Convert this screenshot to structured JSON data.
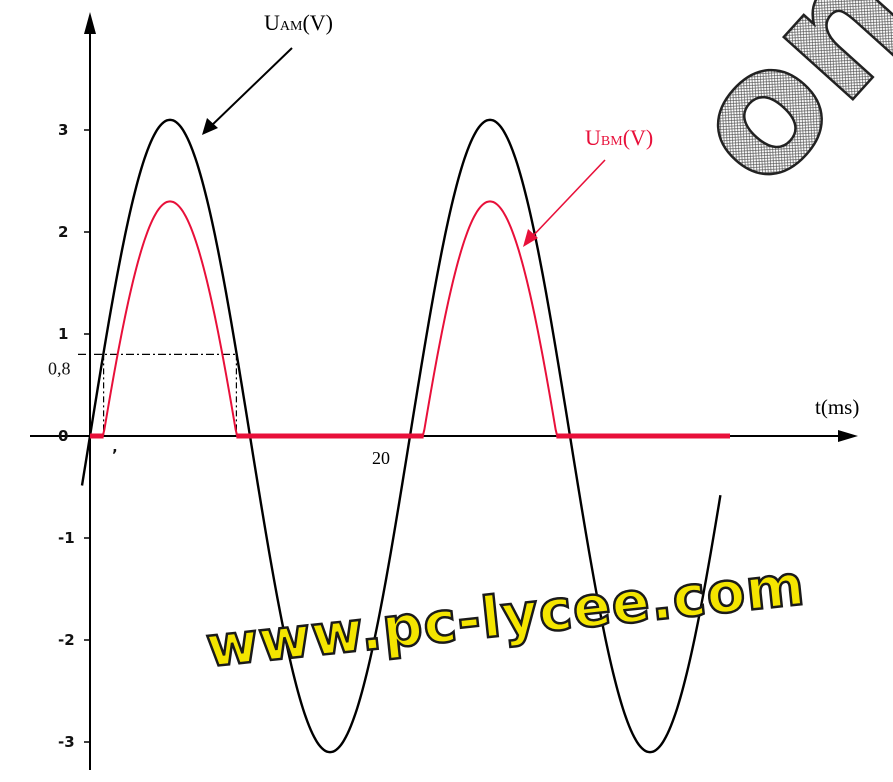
{
  "chart_data": {
    "type": "line",
    "xlabel": "t(ms)",
    "x_tick_labels": [
      "20"
    ],
    "y_tick_labels": [
      "3",
      "2",
      "1",
      "0,8",
      "0",
      "-1",
      "-2",
      "-3"
    ],
    "y_ticks": [
      3,
      2,
      1,
      0.8,
      0,
      -1,
      -2,
      -3
    ],
    "xlim": [
      0,
      40
    ],
    "ylim": [
      -3.1,
      3.1
    ],
    "period_ms": 20,
    "threshold_v": 0.8,
    "series": [
      {
        "name": "UAM(V)",
        "color": "#000000",
        "x": [
          -0.5,
          0,
          2,
          5,
          8,
          10,
          12,
          15,
          18,
          20,
          22,
          25,
          28,
          30,
          32,
          35,
          38,
          39.5
        ],
        "y": [
          -0.47,
          0,
          1.82,
          3.1,
          1.82,
          0,
          -1.82,
          -3.1,
          -1.82,
          0,
          1.82,
          3.1,
          1.82,
          0,
          -1.82,
          -3.1,
          -1.82,
          -0.96
        ]
      },
      {
        "name": "UBM(V)",
        "color": "#e8103a",
        "x": [
          0,
          0.85,
          2,
          3,
          4,
          5,
          6,
          7,
          8,
          9.15,
          10,
          15,
          20,
          20.85,
          22,
          23,
          24,
          25,
          26,
          27,
          28,
          29.15,
          30,
          35,
          40
        ],
        "y": [
          0,
          0,
          1.02,
          1.72,
          2.15,
          2.3,
          2.15,
          1.72,
          1.02,
          0,
          0,
          0,
          0,
          0,
          1.02,
          1.72,
          2.15,
          2.3,
          2.15,
          1.72,
          1.02,
          0,
          0,
          0,
          0
        ]
      }
    ],
    "annotations": {
      "uam_label": "UAM(V)",
      "ubm_label": "UBM(V)"
    }
  },
  "labels": {
    "uam_main": "U",
    "uam_sub": "AM",
    "uam_unit": "(V)",
    "ubm_main": "U",
    "ubm_sub": "BM",
    "ubm_unit": "(V)",
    "x_axis": "t(ms)",
    "x_tick_20": "20"
  },
  "watermark": {
    "text": "www.pc-lycee.com",
    "decorative": "om",
    "color": "#f4e500",
    "outline": "#1a1a1a"
  },
  "colors": {
    "uam": "#000000",
    "ubm": "#e8103a",
    "axis": "#000000"
  }
}
